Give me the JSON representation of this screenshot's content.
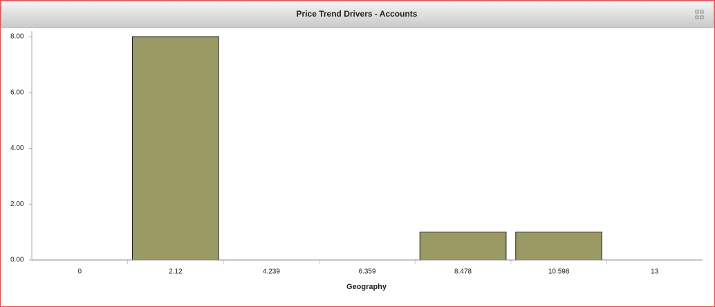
{
  "chart_data": {
    "type": "bar",
    "title": "Price Trend Drivers - Accounts",
    "x_label": "Geography",
    "categories": [
      "0",
      "2.12",
      "4.239",
      "6.359",
      "8.478",
      "10.598",
      "13"
    ],
    "values": [
      0,
      8,
      0,
      0,
      1,
      1,
      0
    ],
    "color": "#9c9a64",
    "ylim": [
      0,
      8
    ],
    "yticks": [
      {
        "value": 0,
        "label": "0.00"
      },
      {
        "value": 2,
        "label": "2.00"
      },
      {
        "value": 4,
        "label": "4.00"
      },
      {
        "value": 6,
        "label": "6.00"
      },
      {
        "value": 8,
        "label": "8.00"
      }
    ],
    "grid": false
  }
}
